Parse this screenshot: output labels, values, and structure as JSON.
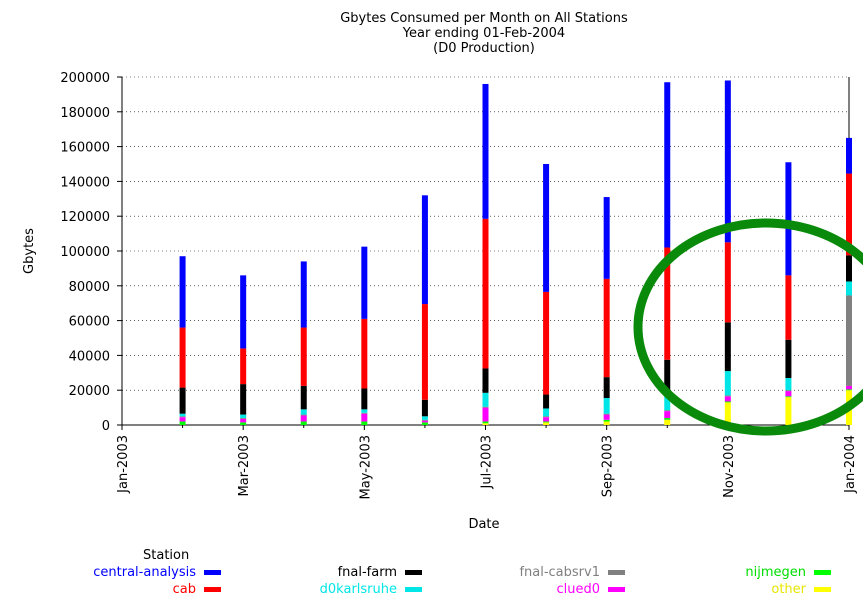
{
  "chart_data": {
    "type": "bar",
    "stacked": true,
    "title": [
      "Gbytes Consumed per Month on All Stations",
      "Year ending 01-Feb-2004",
      "(D0 Production)"
    ],
    "xlabel": "Date",
    "ylabel": "Gbytes",
    "ylim": [
      0,
      200000
    ],
    "yticks": [
      "0",
      "20000",
      "40000",
      "60000",
      "80000",
      "100000",
      "120000",
      "140000",
      "160000",
      "180000",
      "200000"
    ],
    "xticks": [
      "Jan-2003",
      "Mar-2003",
      "May-2003",
      "Jul-2003",
      "Sep-2003",
      "Nov-2003",
      "Jan-2004"
    ],
    "categories": [
      "Feb-2003",
      "Mar-2003",
      "Apr-2003",
      "May-2003",
      "Jun-2003",
      "Jul-2003",
      "Aug-2003",
      "Sep-2003",
      "Oct-2003",
      "Nov-2003",
      "Dec-2003",
      "Jan-2004"
    ],
    "legend_title": "Station",
    "series": [
      {
        "name": "other",
        "color": "#ffff00",
        "values": [
          0,
          0,
          0,
          0,
          0,
          1000,
          1500,
          2000,
          3000,
          13000,
          16000,
          20000
        ]
      },
      {
        "name": "nijmegen",
        "color": "#00ff00",
        "values": [
          2000,
          1500,
          2000,
          2000,
          1500,
          1000,
          500,
          1000,
          1000,
          500,
          500,
          500
        ]
      },
      {
        "name": "clued0",
        "color": "#ff00ff",
        "values": [
          2500,
          2000,
          3500,
          4500,
          1000,
          8000,
          2500,
          3000,
          4000,
          3000,
          3000,
          2000
        ]
      },
      {
        "name": "fnal-cabsrv1",
        "color": "#808080",
        "values": [
          500,
          500,
          500,
          500,
          500,
          500,
          500,
          500,
          500,
          500,
          500,
          52000
        ]
      },
      {
        "name": "d0karlsruhe",
        "color": "#00e6e6",
        "values": [
          1500,
          2000,
          3000,
          2000,
          2000,
          8000,
          4500,
          9000,
          10000,
          14000,
          7000,
          8000
        ]
      },
      {
        "name": "fnal-farm",
        "color": "#000000",
        "values": [
          15000,
          17500,
          13500,
          12000,
          9500,
          14000,
          8000,
          12000,
          19000,
          28000,
          22000,
          15000
        ]
      },
      {
        "name": "cab",
        "color": "#ff0000",
        "values": [
          34500,
          20500,
          33500,
          40000,
          55000,
          86000,
          59000,
          56500,
          64500,
          46000,
          37000,
          47000
        ]
      },
      {
        "name": "central-analysis",
        "color": "#0000ff",
        "values": [
          41000,
          42000,
          38000,
          41500,
          62500,
          77500,
          73500,
          47000,
          95000,
          93000,
          65000,
          20500
        ]
      }
    ]
  },
  "legend": {
    "title": "Station",
    "items": [
      {
        "label": "central-analysis",
        "color": "#0000ff"
      },
      {
        "label": "cab",
        "color": "#ff0000"
      },
      {
        "label": "fnal-farm",
        "color": "#000000"
      },
      {
        "label": "d0karlsruhe",
        "color": "#00e6e6"
      },
      {
        "label": "fnal-cabsrv1",
        "color": "#808080"
      },
      {
        "label": "clued0",
        "color": "#ff00ff"
      },
      {
        "label": "nijmegen",
        "color": "#00ff00"
      },
      {
        "label": "other",
        "color": "#ffff00"
      }
    ]
  },
  "annotation": {
    "shape": "ellipse",
    "color": "#0a8a0a"
  }
}
